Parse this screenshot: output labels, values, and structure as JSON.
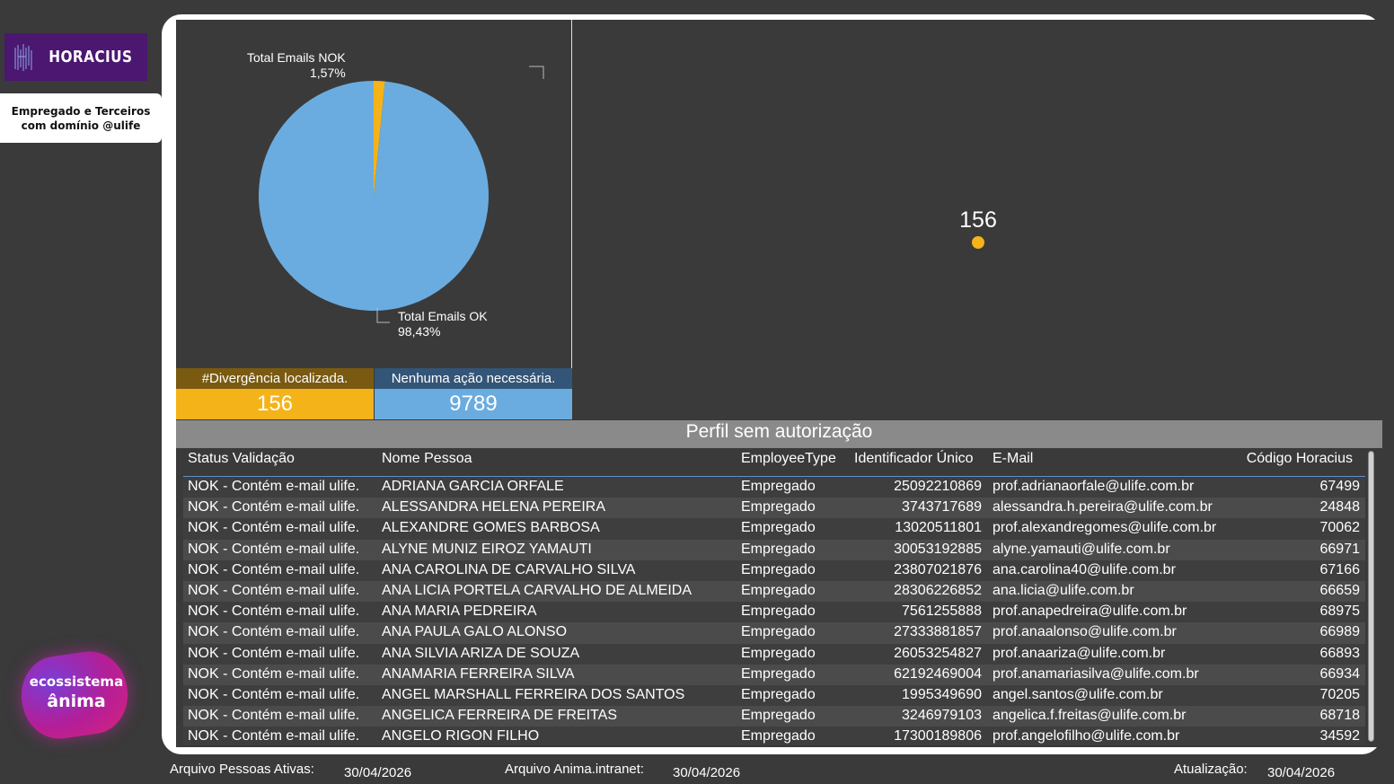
{
  "brand": {
    "logo_text": "HORACIUS",
    "eco_line1": "ecossistema",
    "eco_line2": "ânima"
  },
  "scope": {
    "label": "Empregado e Terceiros com domínio @ulife"
  },
  "pie": {
    "slices": [
      {
        "label": "Total Emails NOK",
        "percent": "1,57%",
        "value": 1.57,
        "color": "#f5b31a"
      },
      {
        "label": "Total Emails OK",
        "percent": "98,43%",
        "value": 98.43,
        "color": "#6aace0"
      }
    ]
  },
  "kpis": {
    "nok": {
      "header": "#Divergência localizada.",
      "value": "156",
      "head_color": "#7a5a10",
      "val_color": "#f5b31a"
    },
    "ok": {
      "header": "Nenhuma ação necessária.",
      "value": "9789",
      "head_color": "#335577",
      "val_color": "#6aace0"
    }
  },
  "scatter": {
    "label": "156",
    "color": "#f5b31a"
  },
  "table": {
    "title": "Perfil sem autorização",
    "columns": [
      "Status Validação",
      "Nome Pessoa",
      "EmployeeType",
      "Identificador Único",
      "E-Mail",
      "Código Horacius"
    ],
    "rows": [
      [
        "NOK - Contém e-mail ulife.",
        "ADRIANA GARCIA ORFALE",
        "Empregado",
        "25092210869",
        "prof.adrianaorfale@ulife.com.br",
        "67499"
      ],
      [
        "NOK - Contém e-mail ulife.",
        "ALESSANDRA HELENA PEREIRA",
        "Empregado",
        "3743717689",
        "alessandra.h.pereira@ulife.com.br",
        "24848"
      ],
      [
        "NOK - Contém e-mail ulife.",
        "ALEXANDRE GOMES BARBOSA",
        "Empregado",
        "13020511801",
        "prof.alexandregomes@ulife.com.br",
        "70062"
      ],
      [
        "NOK - Contém e-mail ulife.",
        "ALYNE MUNIZ EIROZ YAMAUTI",
        "Empregado",
        "30053192885",
        "alyne.yamauti@ulife.com.br",
        "66971"
      ],
      [
        "NOK - Contém e-mail ulife.",
        "ANA CAROLINA DE CARVALHO SILVA",
        "Empregado",
        "23807021876",
        "ana.carolina40@ulife.com.br",
        "67166"
      ],
      [
        "NOK - Contém e-mail ulife.",
        "ANA LICIA PORTELA CARVALHO DE ALMEIDA",
        "Empregado",
        "28306226852",
        "ana.licia@ulife.com.br",
        "66659"
      ],
      [
        "NOK - Contém e-mail ulife.",
        "ANA MARIA PEDREIRA",
        "Empregado",
        "7561255888",
        "prof.anapedreira@ulife.com.br",
        "68975"
      ],
      [
        "NOK - Contém e-mail ulife.",
        "ANA PAULA GALO ALONSO",
        "Empregado",
        "27333881857",
        "prof.anaalonso@ulife.com.br",
        "66989"
      ],
      [
        "NOK - Contém e-mail ulife.",
        "ANA SILVIA ARIZA DE SOUZA",
        "Empregado",
        "26053254827",
        "prof.anaariza@ulife.com.br",
        "66893"
      ],
      [
        "NOK - Contém e-mail ulife.",
        "ANAMARIA FERREIRA SILVA",
        "Empregado",
        "62192469004",
        "prof.anamariasilva@ulife.com.br",
        "66934"
      ],
      [
        "NOK - Contém e-mail ulife.",
        "ANGEL MARSHALL FERREIRA DOS SANTOS",
        "Empregado",
        "1995349690",
        "angel.santos@ulife.com.br",
        "70205"
      ],
      [
        "NOK - Contém e-mail ulife.",
        "ANGELICA FERREIRA DE FREITAS",
        "Empregado",
        "3246979103",
        "angelica.f.freitas@ulife.com.br",
        "68718"
      ],
      [
        "NOK - Contém e-mail ulife.",
        "ANGELO RIGON FILHO",
        "Empregado",
        "17300189806",
        "prof.angelofilho@ulife.com.br",
        "34592"
      ]
    ]
  },
  "footer": {
    "pessoas_label": "Arquivo Pessoas Ativas:",
    "pessoas_date": "30/04/2026",
    "intranet_label": "Arquivo Anima.intranet:",
    "intranet_date": "30/04/2026",
    "update_label": "Atualização:",
    "update_date": "30/04/2026"
  }
}
